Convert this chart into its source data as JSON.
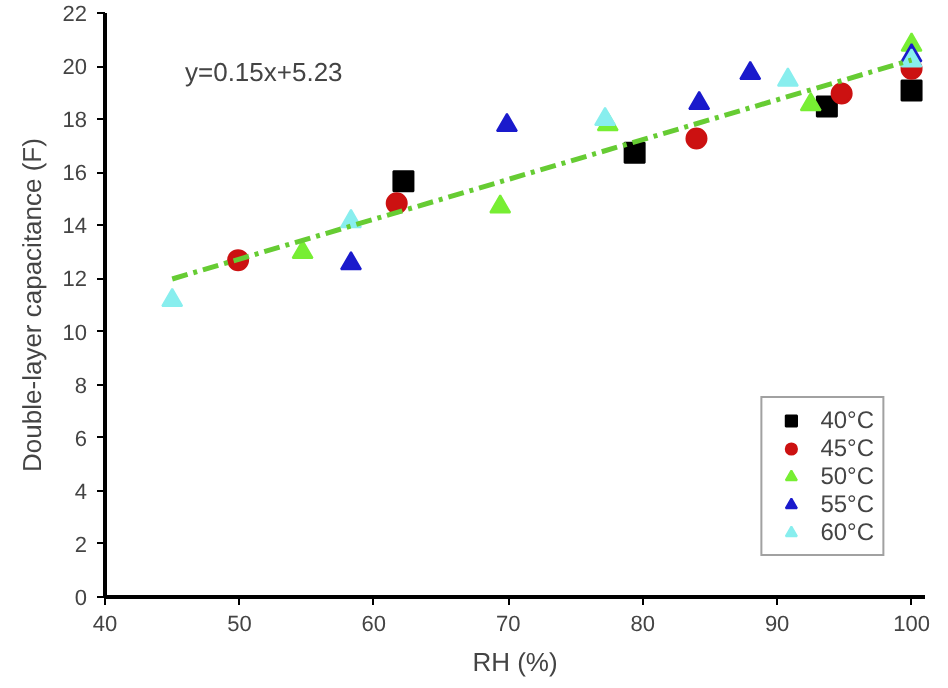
{
  "chart_data": {
    "type": "scatter",
    "xlabel": "RH (%)",
    "ylabel": "Double-layer capacitance (F)",
    "xlim": [
      40,
      101
    ],
    "xticks": [
      40,
      50,
      60,
      70,
      80,
      90,
      100
    ],
    "ylim": [
      0,
      22
    ],
    "yticks": [
      0,
      2,
      4,
      6,
      8,
      10,
      12,
      14,
      16,
      18,
      20,
      22
    ],
    "grid": false,
    "legend": "bottom right",
    "annotations": [
      "y=0.15x+5.23"
    ],
    "series": [
      {
        "name": "40°C",
        "color": "#000000",
        "marker": "square",
        "x": [
          62.2,
          79.4,
          93.7,
          100
        ],
        "values": [
          15.66,
          16.74,
          18.48,
          19.08
        ]
      },
      {
        "name": "45°C",
        "color": "#cc1111",
        "marker": "circle",
        "x": [
          49.9,
          61.7,
          84.0,
          94.8,
          100
        ],
        "values": [
          12.69,
          14.83,
          17.27,
          18.97,
          19.9
        ]
      },
      {
        "name": "50°C",
        "color": "#77ee33",
        "marker": "triangle",
        "x": [
          54.7,
          69.4,
          77.4,
          92.5,
          100
        ],
        "values": [
          12.99,
          14.7,
          17.8,
          18.55,
          20.8
        ]
      },
      {
        "name": "55°C",
        "color": "#1a1acc",
        "marker": "triangle",
        "x": [
          58.3,
          69.9,
          84.2,
          88.0,
          100
        ],
        "values": [
          12.56,
          17.77,
          18.6,
          19.73,
          20.4
        ]
      },
      {
        "name": "60°C",
        "color": "#88eeee",
        "marker": "triangle",
        "x": [
          45.0,
          58.3,
          77.2,
          90.8,
          100
        ],
        "values": [
          11.18,
          14.15,
          18.0,
          19.48,
          20.2
        ]
      },
      {
        "type": "line",
        "color": "#66cc33",
        "line_style": "dashed",
        "marker": "none",
        "x": [
          45,
          100
        ],
        "values": [
          11.98,
          20.23
        ]
      }
    ]
  }
}
